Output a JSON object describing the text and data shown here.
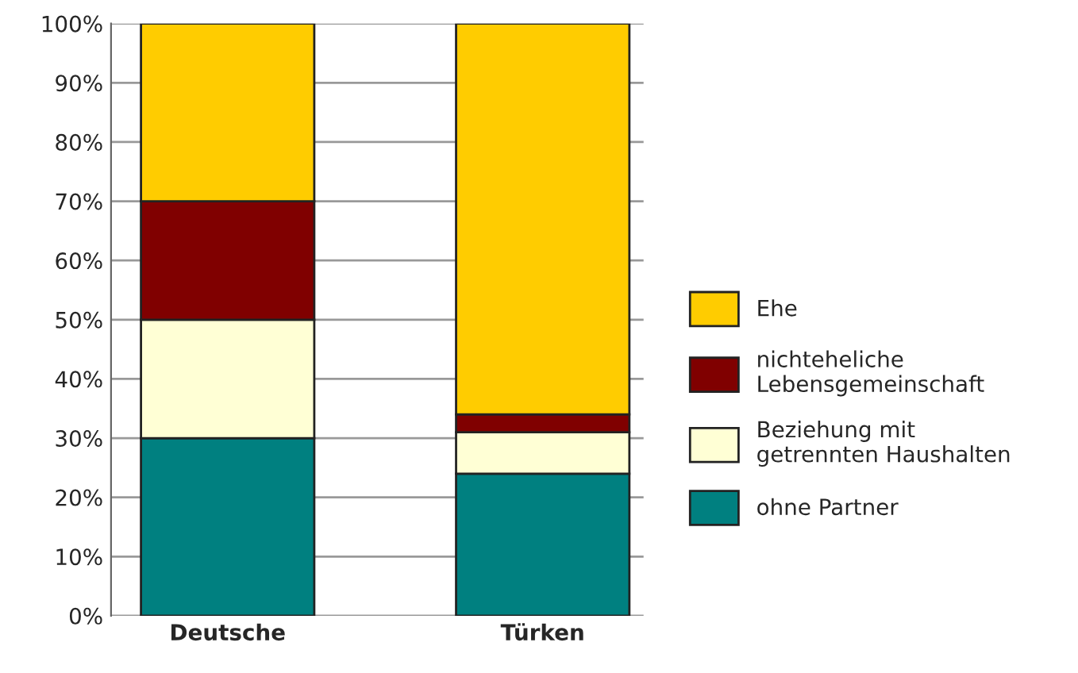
{
  "chart_data": {
    "type": "bar",
    "stacked": true,
    "categories": [
      "Deutsche",
      "Türken"
    ],
    "series": [
      {
        "name": "ohne Partner",
        "color": "#008080",
        "values": [
          30,
          24
        ]
      },
      {
        "name": "Beziehung mit\ngetrennten Haushalten",
        "color": "#ffffd5",
        "values": [
          20,
          7
        ]
      },
      {
        "name": "nichteheliche\nLebensgemeinschaft",
        "color": "#800000",
        "values": [
          20,
          3
        ]
      },
      {
        "name": "Ehe",
        "color": "#ffcc00",
        "values": [
          30,
          66
        ]
      }
    ],
    "ylim": [
      0,
      100
    ],
    "yticks": [
      {
        "value": 0,
        "label": "0%"
      },
      {
        "value": 10,
        "label": "10%"
      },
      {
        "value": 20,
        "label": "20%"
      },
      {
        "value": 30,
        "label": "30%"
      },
      {
        "value": 40,
        "label": "40%"
      },
      {
        "value": 50,
        "label": "50%"
      },
      {
        "value": 60,
        "label": "60%"
      },
      {
        "value": 70,
        "label": "70%"
      },
      {
        "value": 80,
        "label": "80%"
      },
      {
        "value": 90,
        "label": "90%"
      },
      {
        "value": 100,
        "label": "100%"
      }
    ],
    "grid": "y",
    "legend": "right"
  }
}
